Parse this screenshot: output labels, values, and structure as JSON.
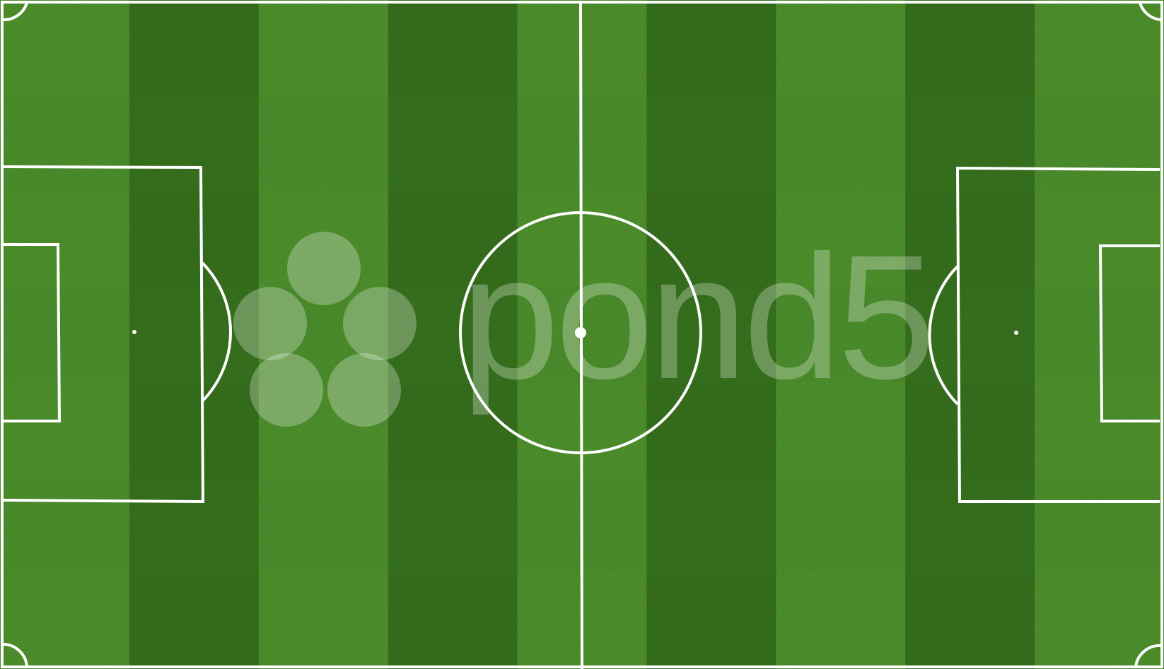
{
  "scene": {
    "subject": "soccer-pitch-top-down",
    "stripe_count": 9,
    "checker_rows": 7,
    "colors": {
      "stripe_light": "#4f9a2c",
      "stripe_dark": "#2f6e17",
      "line": "#ffffff",
      "border": "#ffffff"
    }
  },
  "watermark": {
    "text": "pond5",
    "color": "#ffffff",
    "opacity": 0.28
  }
}
